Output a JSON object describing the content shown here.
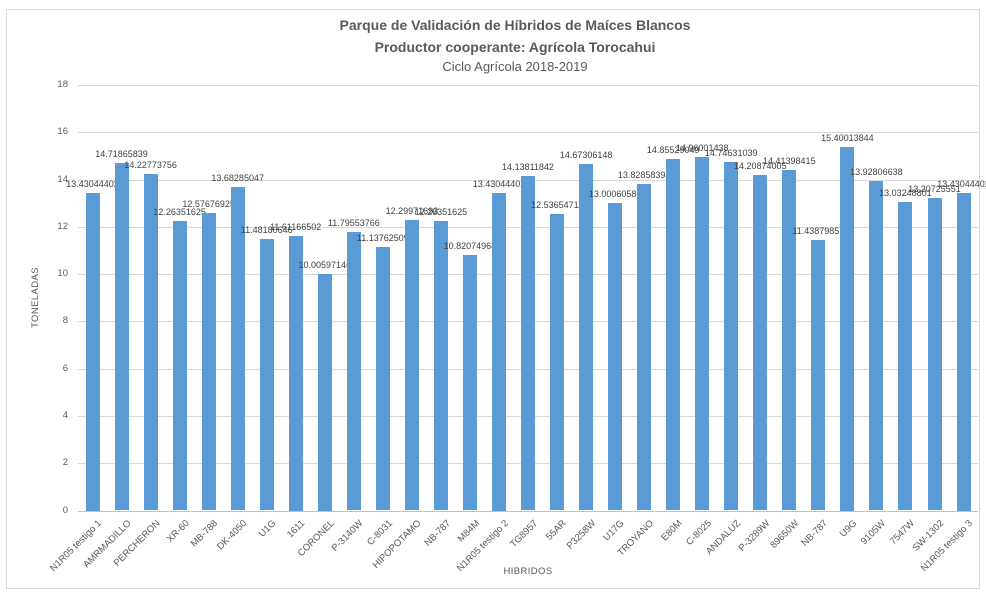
{
  "chart_data": {
    "type": "bar",
    "title": "Parque de Validación de Híbridos de Maíces Blancos",
    "subtitle": "Productor cooperante: Agrícola Torocahui",
    "subtitle2": "Ciclo Agrícola 2018-2019",
    "xlabel": "HIBRIDOS",
    "ylabel": "TONELADAS",
    "ylim": [
      0,
      18
    ],
    "ytick_step": 2,
    "grid": true,
    "legend_position": "none",
    "data_labels": true,
    "categories": [
      "N1R05 testigo 1",
      "AMRMADILLO",
      "PERCHERON",
      "XR-60",
      "MB-788",
      "DK-4050",
      "U1G",
      "1611",
      "CORONEL",
      "P-3140W",
      "C-8031",
      "HIPOPOTAMO",
      "NB-787",
      "M84M",
      "N1R05 testigo 2",
      "TG8957",
      "55AR",
      "P3258W",
      "U17G",
      "TROYANO",
      "E80M",
      "C-8025",
      "ANDALUZ",
      "P-3289W",
      "89650W",
      "NB-787",
      "U9G",
      "9105W",
      "7547W",
      "SW-1302",
      "N1R05 testigo 3"
    ],
    "values": [
      13.43044402,
      14.71865839,
      14.22773756,
      12.26351625,
      12.57676925,
      13.68285047,
      11.48180646,
      11.61166502,
      10.00597146,
      11.79553766,
      11.13762509,
      12.29971693,
      12.26351625,
      10.82074964,
      13.43044402,
      14.13811842,
      12.53654711,
      14.67306148,
      13.00060581,
      13.82858394,
      14.85529049,
      14.96001438,
      14.74631039,
      14.20874005,
      14.41398415,
      11.43879857,
      15.40013844,
      13.92806638,
      13.03248801,
      13.20725551,
      13.43044402
    ],
    "colors": {
      "bar": "#5b9bd5",
      "gridline": "#d9d9d9",
      "axis_line": "#bfbfbf",
      "text": "#595959",
      "data_label": "#404040"
    }
  }
}
